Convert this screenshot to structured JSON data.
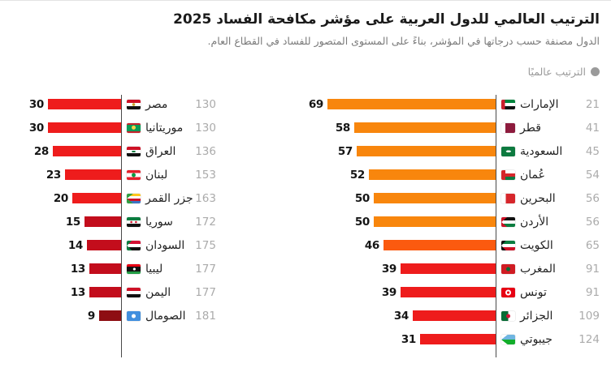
{
  "header": {
    "title": "الترتيب العالمي للدول العربية على مؤشر مكافحة الفساد 2025",
    "subtitle": "الدول مصنفة حسب درجاتها في المؤشر، بناءً على المستوى المتصور للفساد في القطاع العام.",
    "legend_label": "الترتيب عالميًا"
  },
  "colors": {
    "orange": "#f8860d",
    "orange_red": "#fb5a0f",
    "red": "#ee1c1c",
    "dark_red": "#c30d1c",
    "maroon": "#8e0e13",
    "axis": "#4a4a4a",
    "rank_text": "#ababab",
    "score_text": "#151515",
    "title_text": "#1a1a1a",
    "subtitle_text": "#7b7b7b",
    "legend_text": "#999999",
    "background": "#ffffff",
    "top_border": "#e3e3e3"
  },
  "chart_data": {
    "type": "bar",
    "orientation": "horizontal-rtl",
    "title": "الترتيب العالمي للدول العربية على مؤشر مكافحة الفساد 2025",
    "subtitle": "الدول مصنفة حسب درجاتها في المؤشر، بناءً على المستوى المتصور للفساد في القطاع العام.",
    "legend": [
      {
        "label": "الترتيب عالميًا",
        "marker": "gray-dot"
      }
    ],
    "value_axis_visible": false,
    "columns": [
      {
        "position": "right",
        "rows": [
          {
            "id": "uae",
            "country": "الإمارات",
            "flag": "ae",
            "score": 69,
            "rank": 21,
            "color": "#f8860d"
          },
          {
            "id": "qatar",
            "country": "قطر",
            "flag": "qa",
            "score": 58,
            "rank": 41,
            "color": "#f8860d"
          },
          {
            "id": "saudi-arabia",
            "country": "السعودية",
            "flag": "sa",
            "score": 57,
            "rank": 45,
            "color": "#f8860d"
          },
          {
            "id": "oman",
            "country": "عُمان",
            "flag": "om",
            "score": 52,
            "rank": 54,
            "color": "#f8860d"
          },
          {
            "id": "bahrain",
            "country": "البحرين",
            "flag": "bh",
            "score": 50,
            "rank": 56,
            "color": "#f8860d"
          },
          {
            "id": "jordan",
            "country": "الأردن",
            "flag": "jo",
            "score": 50,
            "rank": 56,
            "color": "#f8860d"
          },
          {
            "id": "kuwait",
            "country": "الكويت",
            "flag": "kw",
            "score": 46,
            "rank": 65,
            "color": "#fb5a0f"
          },
          {
            "id": "morocco",
            "country": "المغرب",
            "flag": "ma",
            "score": 39,
            "rank": 91,
            "color": "#ee1c1c"
          },
          {
            "id": "tunisia",
            "country": "تونس",
            "flag": "tn",
            "score": 39,
            "rank": 91,
            "color": "#ee1c1c"
          },
          {
            "id": "algeria",
            "country": "الجزائر",
            "flag": "dz",
            "score": 34,
            "rank": 109,
            "color": "#ee1c1c"
          },
          {
            "id": "djibouti",
            "country": "جيبوتي",
            "flag": "dj",
            "score": 31,
            "rank": 124,
            "color": "#ee1c1c"
          }
        ]
      },
      {
        "position": "left",
        "rows": [
          {
            "id": "egypt",
            "country": "مصر",
            "flag": "eg",
            "score": 30,
            "rank": 130,
            "color": "#ee1c1c"
          },
          {
            "id": "mauritania",
            "country": "موريتانيا",
            "flag": "mr",
            "score": 30,
            "rank": 130,
            "color": "#ee1c1c"
          },
          {
            "id": "iraq",
            "country": "العراق",
            "flag": "iq",
            "score": 28,
            "rank": 136,
            "color": "#ee1c1c"
          },
          {
            "id": "lebanon",
            "country": "لبنان",
            "flag": "lb",
            "score": 23,
            "rank": 153,
            "color": "#ee1c1c"
          },
          {
            "id": "comoros",
            "country": "جزر القمر",
            "flag": "km",
            "score": 20,
            "rank": 163,
            "color": "#ee1c1c"
          },
          {
            "id": "syria",
            "country": "سوريا",
            "flag": "sy",
            "score": 15,
            "rank": 172,
            "color": "#c30d1c"
          },
          {
            "id": "sudan",
            "country": "السودان",
            "flag": "sd",
            "score": 14,
            "rank": 175,
            "color": "#c30d1c"
          },
          {
            "id": "libya",
            "country": "ليبيا",
            "flag": "ly",
            "score": 13,
            "rank": 177,
            "color": "#c30d1c"
          },
          {
            "id": "yemen",
            "country": "اليمن",
            "flag": "ye",
            "score": 13,
            "rank": 177,
            "color": "#c30d1c"
          },
          {
            "id": "somalia",
            "country": "الصومال",
            "flag": "so",
            "score": 9,
            "rank": 181,
            "color": "#8e0e13"
          }
        ]
      }
    ]
  }
}
